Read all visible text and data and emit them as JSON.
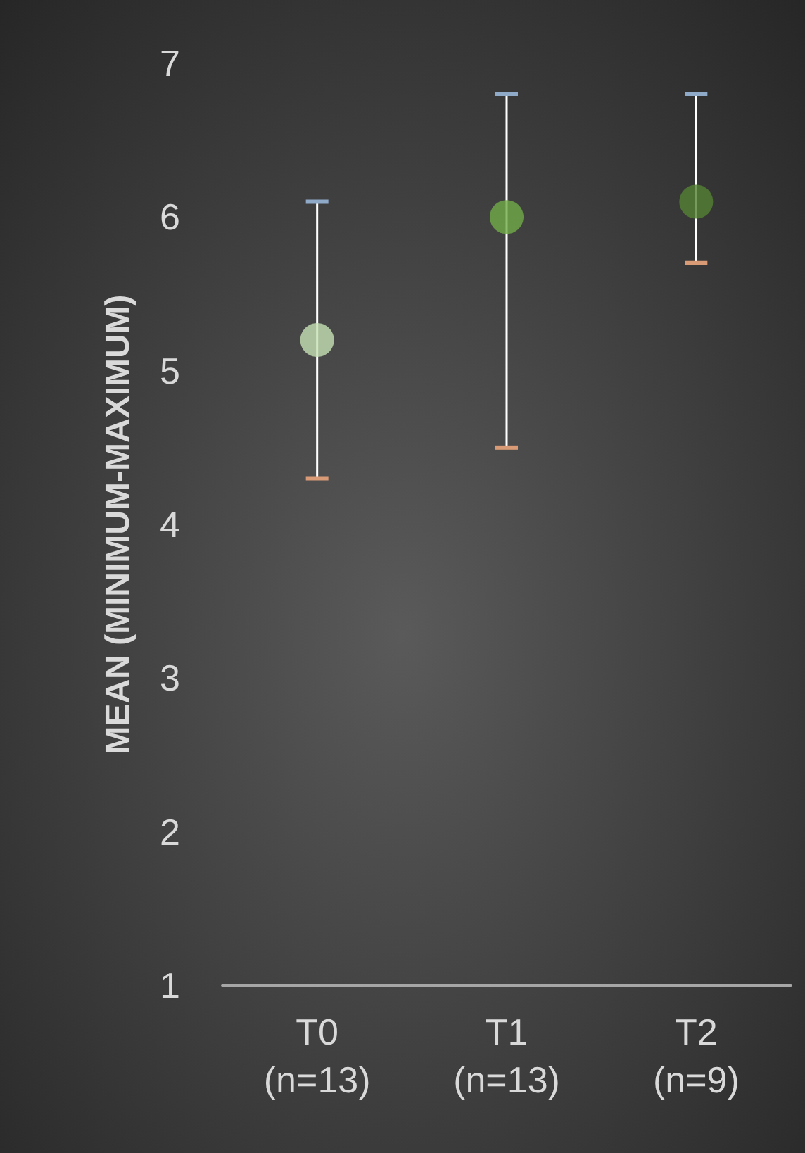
{
  "chart_data": {
    "type": "scatter",
    "ylabel": "MEAN (MINIMUM-MAXIMUM)",
    "categories": [
      "T0\n(n=13)",
      "T1\n(n=13)",
      "T2\n(n=9)"
    ],
    "values": [
      5.2,
      6.0,
      6.1
    ],
    "colors": [
      "#c5e0b4",
      "#70ad47",
      "#548235"
    ],
    "errors": [
      [
        4.3,
        6.1
      ],
      [
        4.5,
        6.8
      ],
      [
        5.7,
        6.8
      ]
    ],
    "ylim": [
      1,
      7
    ],
    "yticks": [
      1,
      2,
      3,
      4,
      5,
      6,
      7
    ],
    "grid": false,
    "marker": "circle"
  }
}
